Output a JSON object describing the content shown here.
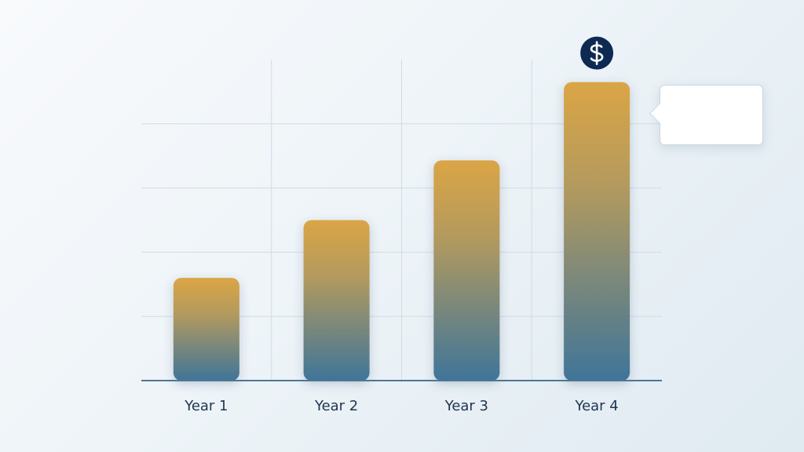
{
  "chart_data": {
    "type": "bar",
    "categories": [
      "Year 1",
      "Year 2",
      "Year 3",
      "Year 4"
    ],
    "values": [
      1.6,
      2.5,
      3.43,
      4.65
    ],
    "title": "",
    "xlabel": "",
    "ylabel": "",
    "ylim": [
      0,
      5
    ],
    "grid": true,
    "legend": "none",
    "highlight_category": "Year 4",
    "highlight_icon": "dollar-icon",
    "colors": {
      "bar_top": "#dba545",
      "bar_bottom": "#3f7599",
      "grid": "#cfdce6",
      "axis": "#4e7694",
      "icon_bg": "#0f2a52",
      "label": "#1f3550"
    }
  },
  "tooltip": {
    "text": ""
  }
}
